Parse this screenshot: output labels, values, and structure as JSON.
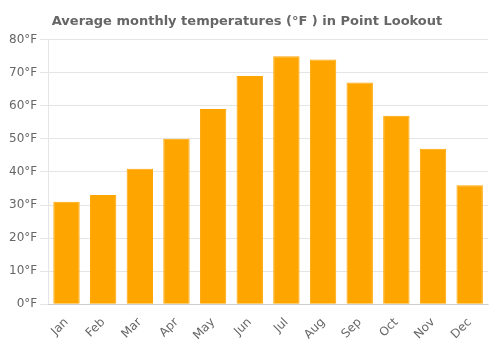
{
  "chart_data": {
    "type": "bar",
    "title": "Average monthly temperatures (°F ) in Point Lookout",
    "categories": [
      "Jan",
      "Feb",
      "Mar",
      "Apr",
      "May",
      "Jun",
      "Jul",
      "Aug",
      "Sep",
      "Oct",
      "Nov",
      "Dec"
    ],
    "values": [
      31,
      33,
      41,
      50,
      59,
      69,
      75,
      74,
      67,
      57,
      47,
      36
    ],
    "color": "#FFA500",
    "ylim": [
      0,
      80
    ],
    "yticks": [
      {
        "value": 0,
        "label": "0°F"
      },
      {
        "value": 10,
        "label": "10°F"
      },
      {
        "value": 20,
        "label": "20°F"
      },
      {
        "value": 30,
        "label": "30°F"
      },
      {
        "value": 40,
        "label": "40°F"
      },
      {
        "value": 50,
        "label": "50°F"
      },
      {
        "value": 60,
        "label": "60°F"
      },
      {
        "value": 70,
        "label": "70°F"
      },
      {
        "value": 80,
        "label": "80°F"
      }
    ],
    "grid": true
  }
}
